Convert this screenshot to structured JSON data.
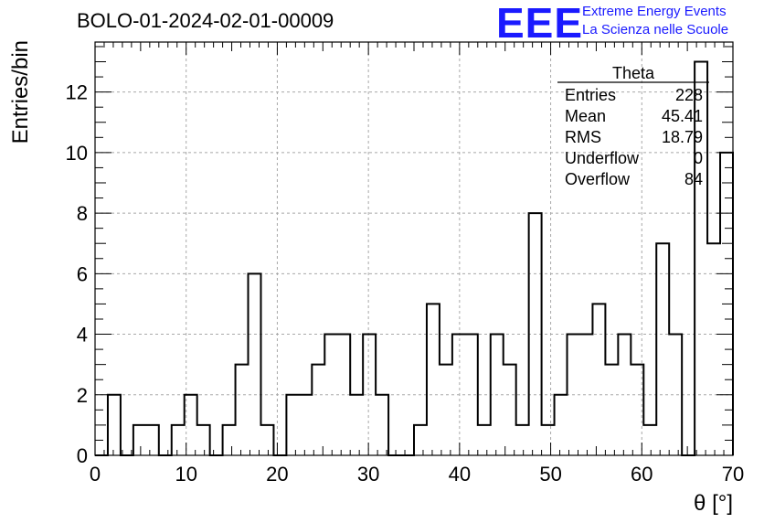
{
  "header": {
    "run_title": "BOLO-01-2024-02-01-00009"
  },
  "logo": {
    "mark": "EEE",
    "line1": "Extreme Energy Events",
    "line2": "La Scienza nelle Scuole",
    "color": "#1a1aff"
  },
  "stats_box": {
    "title": "Theta",
    "rows": [
      {
        "label": "Entries",
        "value": "228"
      },
      {
        "label": "Mean",
        "value": "45.41"
      },
      {
        "label": "RMS",
        "value": "18.79"
      },
      {
        "label": "Underflow",
        "value": "0"
      },
      {
        "label": "Overflow",
        "value": "84"
      }
    ]
  },
  "chart_data": {
    "type": "bar",
    "style": "step-histogram",
    "xlabel": "θ [°]",
    "ylabel": "Entries/bin",
    "xlim": [
      0,
      70
    ],
    "ylim": [
      0,
      13.65
    ],
    "xticks": [
      0,
      10,
      20,
      30,
      40,
      50,
      60,
      70
    ],
    "yticks": [
      0,
      2,
      4,
      6,
      8,
      10,
      12
    ],
    "grid": true,
    "bin_width": 1.4,
    "bin_edges_start": 0,
    "values": [
      0,
      2,
      0,
      1,
      1,
      0,
      1,
      2,
      1,
      0,
      1,
      3,
      6,
      1,
      0,
      2,
      2,
      3,
      4,
      4,
      2,
      4,
      2,
      0,
      0,
      1,
      5,
      3,
      4,
      4,
      1,
      4,
      3,
      1,
      8,
      1,
      2,
      4,
      4,
      5,
      3,
      4,
      3,
      1,
      7,
      4,
      0,
      13,
      7,
      10
    ]
  }
}
